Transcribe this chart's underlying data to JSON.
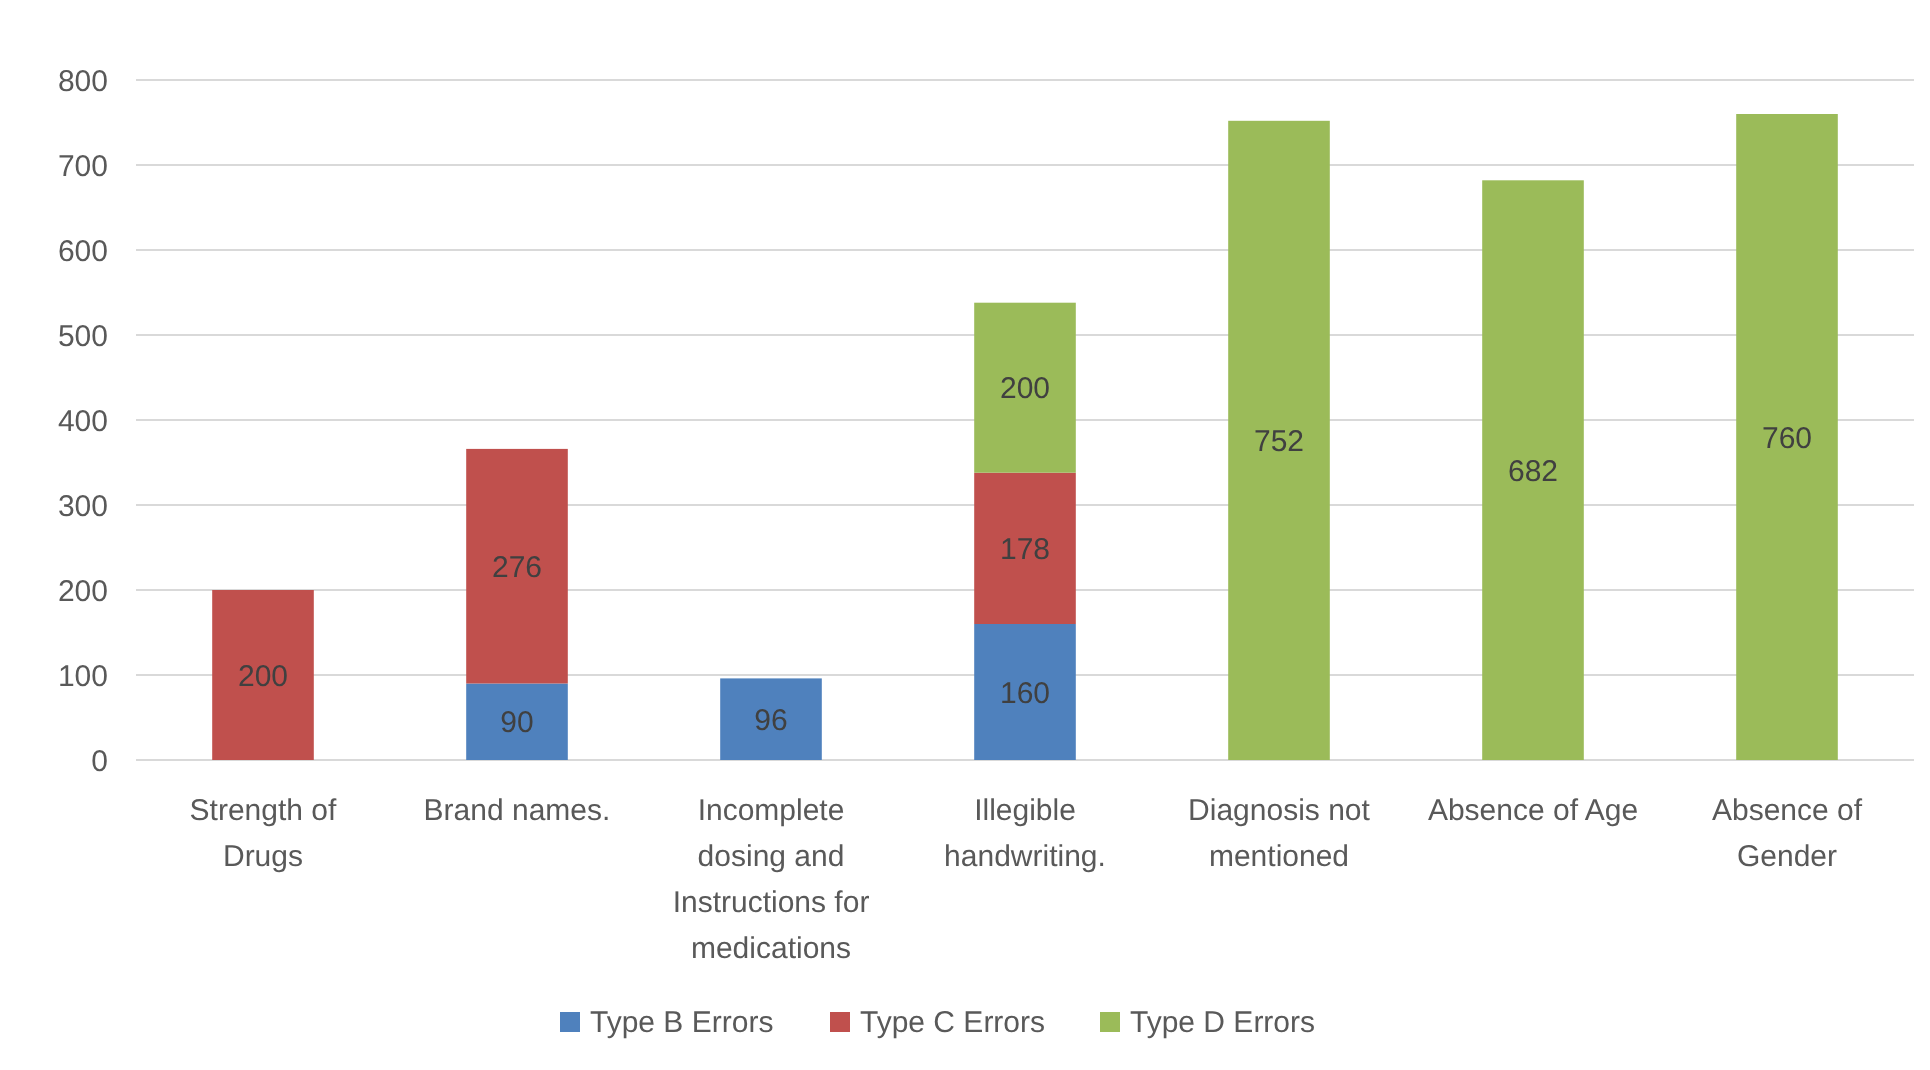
{
  "chart_data": {
    "type": "bar",
    "stacked": true,
    "categories": [
      "Strength of Drugs",
      "Brand names.",
      "Incomplete dosing and Instructions for medications",
      "Illegible handwriting.",
      "Diagnosis not mentioned",
      "Absence of Age",
      "Absence of Gender"
    ],
    "series": [
      {
        "name": "Type B Errors",
        "color": "#4f81bd",
        "values": [
          null,
          90,
          96,
          160,
          null,
          null,
          null
        ]
      },
      {
        "name": "Type C Errors",
        "color": "#c0504d",
        "values": [
          200,
          276,
          null,
          178,
          null,
          null,
          null
        ]
      },
      {
        "name": "Type D Errors",
        "color": "#9bbb59",
        "values": [
          null,
          null,
          null,
          200,
          752,
          682,
          760
        ]
      }
    ],
    "ylim": [
      0,
      800
    ],
    "yticks": [
      0,
      100,
      200,
      300,
      400,
      500,
      600,
      700,
      800
    ],
    "grid": "y",
    "legend": "bottom",
    "data_labels": true
  }
}
